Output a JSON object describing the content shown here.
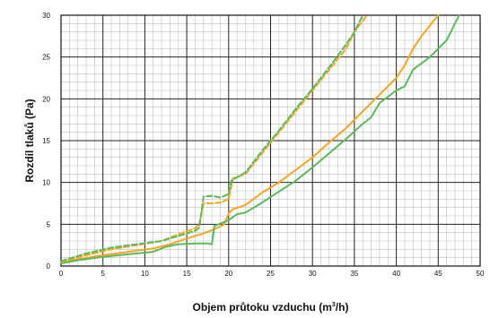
{
  "chart_data": {
    "type": "line",
    "title": "",
    "xlabel": "Objem průtoku vzduchu (m",
    "xlabel_sup": "3",
    "xlabel_end": "/h)",
    "ylabel": "Rozdíl tlaků (Pa)",
    "xlim": [
      0,
      50
    ],
    "ylim": [
      0,
      30
    ],
    "x_ticks": [
      0,
      5,
      10,
      15,
      20,
      25,
      30,
      35,
      40,
      45,
      50
    ],
    "y_ticks": [
      0,
      5,
      10,
      15,
      20,
      25,
      30
    ],
    "grid": true,
    "legend": "none",
    "series": [
      {
        "color": "#f5a623",
        "dash": "solid",
        "x": [
          0,
          2,
          5,
          8,
          11,
          13,
          15,
          17,
          18.5,
          19.5,
          20,
          20.5,
          22,
          24,
          26,
          28,
          30,
          32,
          34,
          36,
          38,
          40,
          41,
          42,
          43,
          45
        ],
        "y": [
          0.4,
          0.8,
          1.3,
          1.7,
          2.1,
          2.6,
          3.3,
          3.9,
          4.5,
          5.0,
          6.3,
          6.8,
          7.3,
          8.8,
          10.0,
          11.5,
          13.0,
          14.8,
          16.5,
          18.5,
          20.5,
          22.5,
          24.0,
          26.0,
          27.5,
          30.0
        ]
      },
      {
        "color": "#5cb85c",
        "dash": "solid",
        "x": [
          0,
          2,
          5,
          8,
          11,
          12.5,
          14,
          16,
          17.5,
          18,
          18.3,
          20,
          21,
          22,
          24,
          26,
          28,
          30,
          32,
          34,
          36,
          37,
          38,
          40,
          41,
          42,
          44,
          46,
          47.5
        ],
        "y": [
          0.3,
          0.7,
          1.1,
          1.4,
          1.7,
          2.3,
          2.6,
          2.7,
          2.7,
          2.6,
          4.8,
          5.5,
          6.2,
          6.4,
          7.6,
          8.9,
          10.2,
          11.8,
          13.5,
          15.2,
          17.0,
          17.8,
          19.5,
          21.0,
          21.5,
          23.5,
          25.0,
          27.0,
          30.0
        ]
      },
      {
        "color": "#f5a623",
        "dash": "dashed",
        "x": [
          0,
          3,
          6,
          9,
          12,
          14,
          16,
          16.5,
          17,
          18,
          19,
          20,
          20.5,
          22,
          24,
          26,
          28,
          30,
          32,
          34,
          35,
          36.5
        ],
        "y": [
          0.5,
          1.3,
          2.0,
          2.5,
          3.0,
          3.8,
          4.5,
          5.0,
          7.5,
          7.5,
          7.6,
          8.0,
          10.5,
          11.0,
          13.5,
          16.0,
          18.5,
          21.0,
          23.5,
          26.0,
          28.0,
          30.0
        ]
      },
      {
        "color": "#5cb85c",
        "dash": "dashed",
        "x": [
          0,
          3,
          6,
          9,
          12,
          14,
          16,
          16.5,
          17,
          18,
          19,
          20,
          20.3,
          22,
          24,
          26,
          28,
          30,
          32,
          34,
          35,
          36
        ],
        "y": [
          0.6,
          1.5,
          2.2,
          2.6,
          3.0,
          3.6,
          4.2,
          4.6,
          8.3,
          8.4,
          8.2,
          8.6,
          10.2,
          11.2,
          13.8,
          16.2,
          18.8,
          21.2,
          23.8,
          26.5,
          28.0,
          30.0
        ]
      }
    ]
  }
}
